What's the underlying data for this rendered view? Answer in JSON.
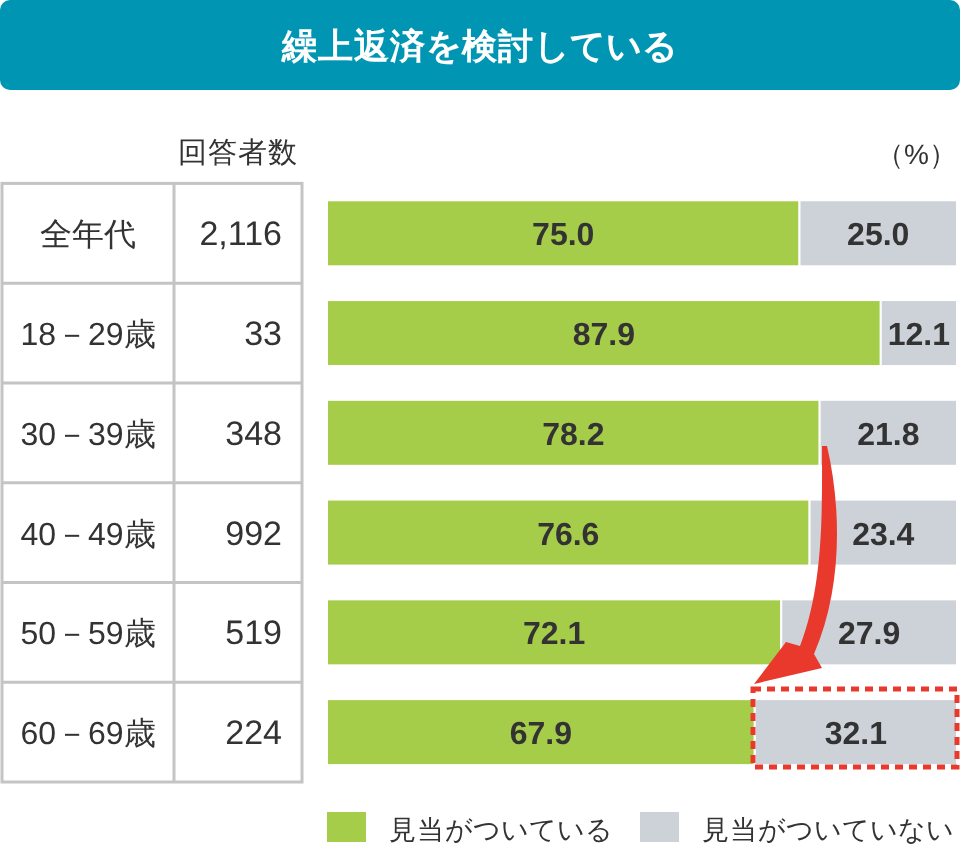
{
  "chart_data": {
    "type": "bar",
    "orientation": "horizontal",
    "stacked": true,
    "title": "繰上返済を検討している",
    "categories": [
      "全年代",
      "18－29歳",
      "30－39歳",
      "40－49歳",
      "50－59歳",
      "60－69歳"
    ],
    "series": [
      {
        "name": "見当がついている",
        "color": "#a6cd4a",
        "values": [
          75.0,
          87.9,
          78.2,
          76.6,
          72.1,
          67.9
        ],
        "value_labels": [
          "75.0",
          "87.9",
          "78.2",
          "76.6",
          "72.1",
          "67.9"
        ]
      },
      {
        "name": "見当がついていない",
        "color": "#ccd2d8",
        "values": [
          25.0,
          12.1,
          21.8,
          23.4,
          27.9,
          32.1
        ],
        "value_labels": [
          "25.0",
          "12.1",
          "21.8",
          "23.4",
          "27.9",
          "32.1"
        ]
      }
    ],
    "xlim": [
      0,
      100
    ],
    "xlabel": "（%）",
    "tick_labels": "y",
    "legend": "bottom",
    "annotations": [
      "回答者数",
      "2,116",
      "33",
      "348",
      "992",
      "519",
      "224"
    ]
  }
}
